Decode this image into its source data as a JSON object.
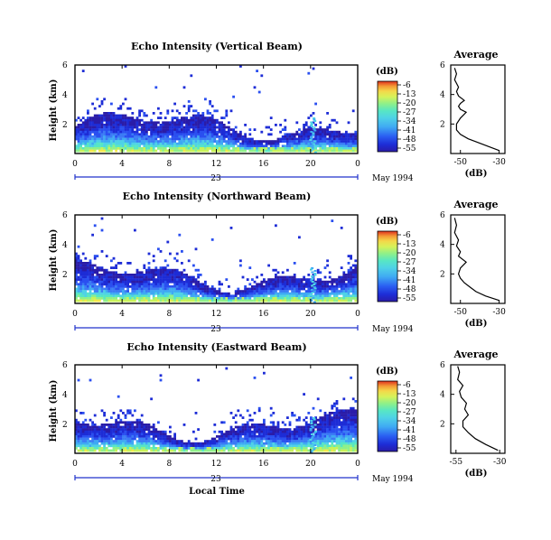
{
  "colors": {
    "scale": [
      "#2a1ca8",
      "#1d2cd6",
      "#2a4ff0",
      "#3b7bf5",
      "#3fa9f3",
      "#4fd2e6",
      "#57e6c4",
      "#8ef08a",
      "#c8f25a",
      "#f4e84a",
      "#f7b43a",
      "#f06a2a",
      "#e0301f"
    ],
    "axis": "#000000",
    "date_axis": "#2233cc"
  },
  "panels": [
    {
      "title": "Echo Intensity (Vertical Beam)",
      "ylabel": "Height (km)",
      "cb_label": "(dB)",
      "cb_ticks": [
        "-6",
        "-13",
        "-20",
        "-27",
        "-34",
        "-41",
        "-48",
        "-55"
      ],
      "avg_title": "Average",
      "avg_xticks": [
        "-50",
        "-30"
      ],
      "avg_xlabel": "(dB)",
      "date_label": "May 1994",
      "day_label": "23"
    },
    {
      "title": "Echo Intensity (Northward Beam)",
      "ylabel": "Height (km)",
      "cb_label": "(dB)",
      "cb_ticks": [
        "-6",
        "-13",
        "-20",
        "-27",
        "-34",
        "-41",
        "-48",
        "-55"
      ],
      "avg_title": "Average",
      "avg_xticks": [
        "-50",
        "-30"
      ],
      "avg_xlabel": "(dB)",
      "date_label": "May 1994",
      "day_label": "23"
    },
    {
      "title": "Echo Intensity (Eastward Beam)",
      "ylabel": "Height (km)",
      "cb_label": "(dB)",
      "cb_ticks": [
        "-6",
        "-13",
        "-20",
        "-27",
        "-34",
        "-41",
        "-48",
        "-55"
      ],
      "avg_title": "Average",
      "avg_xticks": [
        "-55",
        "-30"
      ],
      "avg_xlabel": "(dB)",
      "date_label": "May 1994",
      "day_label": "23"
    }
  ],
  "xlabel": "Local Time",
  "chart_data": [
    {
      "type": "heatmap",
      "title": "Echo Intensity (Vertical Beam)",
      "xlabel": "",
      "ylabel": "Height (km)",
      "xlim": [
        0,
        24
      ],
      "ylim": [
        0,
        6
      ],
      "xticks": [
        "0",
        "4",
        "8",
        "12",
        "16",
        "20",
        "0"
      ],
      "yticks": [
        "2",
        "4",
        "6"
      ],
      "colorbar": {
        "label": "(dB)",
        "ticks": [
          -6,
          -13,
          -20,
          -27,
          -34,
          -41,
          -48,
          -55
        ]
      },
      "profile": {
        "title": "Average",
        "xlabel": "(dB)",
        "xlim": [
          -55,
          -27
        ],
        "heights": [
          0.2,
          0.5,
          0.8,
          1.0,
          1.3,
          1.6,
          2.0,
          2.4,
          2.8,
          3.0,
          3.2,
          3.4,
          3.6,
          3.9,
          4.2,
          4.5,
          5.0,
          5.4,
          5.8
        ],
        "values": [
          -30,
          -36,
          -42,
          -46,
          -50,
          -52,
          -52,
          -50,
          -47,
          -50,
          -51,
          -50,
          -48,
          -51,
          -52,
          -51,
          -53,
          -52,
          -53
        ]
      }
    },
    {
      "type": "heatmap",
      "title": "Echo Intensity (Northward Beam)",
      "xlabel": "",
      "ylabel": "Height (km)",
      "xlim": [
        0,
        24
      ],
      "ylim": [
        0,
        6
      ],
      "xticks": [
        "0",
        "4",
        "8",
        "12",
        "16",
        "20",
        "0"
      ],
      "yticks": [
        "2",
        "4",
        "6"
      ],
      "colorbar": {
        "label": "(dB)",
        "ticks": [
          -6,
          -13,
          -20,
          -27,
          -34,
          -41,
          -48,
          -55
        ]
      },
      "profile": {
        "title": "Average",
        "xlabel": "(dB)",
        "xlim": [
          -55,
          -27
        ],
        "heights": [
          0.2,
          0.5,
          0.8,
          1.1,
          1.4,
          1.7,
          2.0,
          2.4,
          2.8,
          3.2,
          3.5,
          3.9,
          4.3,
          4.8,
          5.3,
          5.8
        ],
        "values": [
          -30,
          -37,
          -42,
          -45,
          -48,
          -50,
          -51,
          -50,
          -47,
          -51,
          -50,
          -52,
          -51,
          -53,
          -52,
          -53
        ]
      }
    },
    {
      "type": "heatmap",
      "title": "Echo Intensity (Eastward Beam)",
      "xlabel": "Local Time",
      "ylabel": "Height (km)",
      "xlim": [
        0,
        24
      ],
      "ylim": [
        0,
        6
      ],
      "xticks": [
        "0",
        "4",
        "8",
        "12",
        "16",
        "20",
        "0"
      ],
      "yticks": [
        "2",
        "4",
        "6"
      ],
      "colorbar": {
        "label": "(dB)",
        "ticks": [
          -6,
          -13,
          -20,
          -27,
          -34,
          -41,
          -48,
          -55
        ]
      },
      "profile": {
        "title": "Average",
        "xlabel": "(dB)",
        "xlim": [
          -58,
          -27
        ],
        "heights": [
          0.2,
          0.6,
          1.0,
          1.4,
          1.8,
          2.2,
          2.6,
          3.0,
          3.4,
          3.8,
          4.2,
          4.6,
          5.0,
          5.5,
          5.9
        ],
        "values": [
          -31,
          -38,
          -44,
          -48,
          -51,
          -51,
          -48,
          -50,
          -49,
          -52,
          -53,
          -51,
          -54,
          -53,
          -54
        ]
      }
    }
  ]
}
